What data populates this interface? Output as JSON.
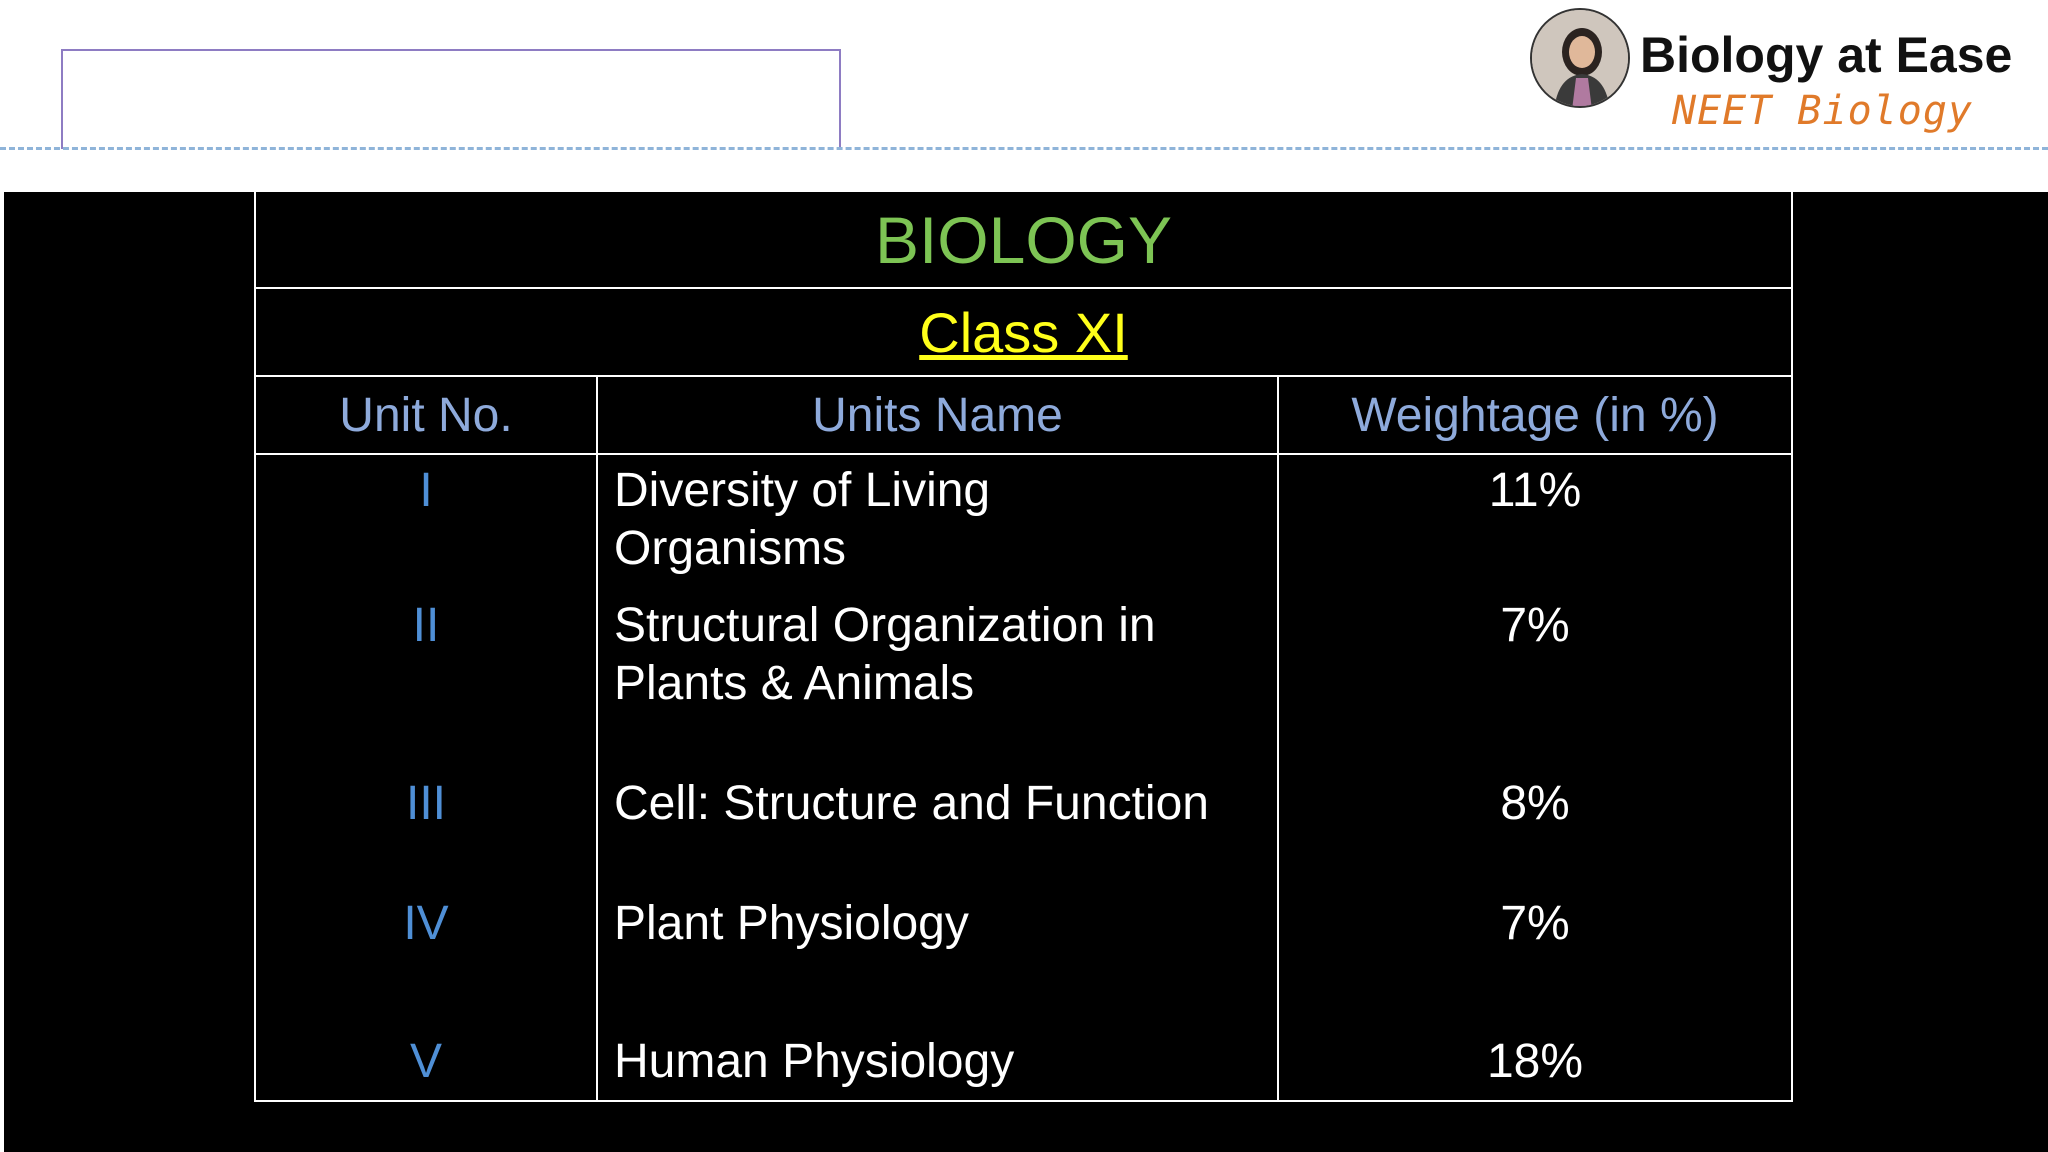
{
  "header": {
    "brand_title": "Biology at Ease",
    "brand_subtitle": "NEET Biology"
  },
  "table": {
    "title": "BIOLOGY",
    "class_label": "Class XI",
    "columns": [
      "Unit No.",
      "Units Name",
      "Weightage (in %)"
    ],
    "rows": [
      {
        "unit": "I",
        "name_lines": [
          "Diversity of Living",
          "Organisms"
        ],
        "weightage": "11%"
      },
      {
        "unit": "II",
        "name_lines": [
          "Structural Organization  in",
          "Plants & Animals"
        ],
        "weightage": "7%"
      },
      {
        "unit": "III",
        "name_lines": [
          "Cell: Structure and Function"
        ],
        "weightage": "8%"
      },
      {
        "unit": "IV",
        "name_lines": [
          "Plant Physiology"
        ],
        "weightage": "7%"
      },
      {
        "unit": "V",
        "name_lines": [
          "Human Physiology"
        ],
        "weightage": "18%"
      }
    ]
  },
  "colors": {
    "title_green": "#7dc454",
    "class_yellow": "#ffff1a",
    "header_blue": "#8eaadb",
    "unit_blue": "#4f8fd6",
    "brand_orange": "#e07a2a"
  }
}
